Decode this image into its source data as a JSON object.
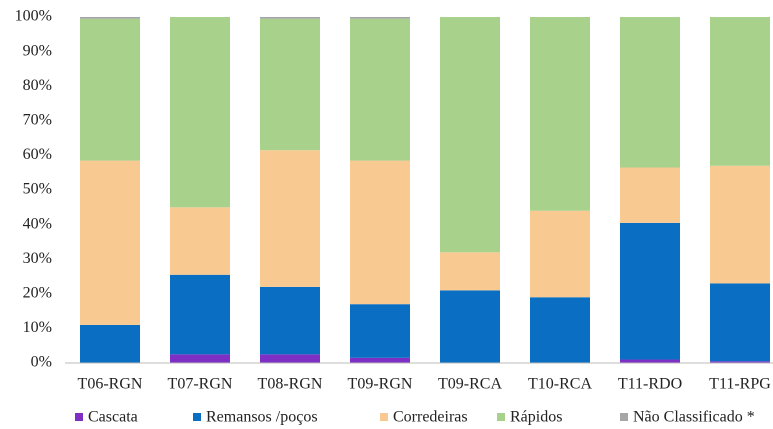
{
  "chart_data": {
    "type": "stacked_bar",
    "categories": [
      "T06-RGN",
      "T07-RGN",
      "T08-RGN",
      "T09-RGN",
      "T09-RCA",
      "T10-RCA",
      "T11-RDO",
      "T11-RPG"
    ],
    "series": [
      {
        "name": "Cascata",
        "color": "#7e2fc4",
        "values": [
          0,
          2.5,
          2.5,
          1.5,
          0,
          0,
          1,
          0.5
        ]
      },
      {
        "name": "Remansos /poços",
        "color": "#0a6fc2",
        "values": [
          11,
          23,
          19.5,
          15.5,
          21,
          19,
          39.5,
          22.5
        ]
      },
      {
        "name": "Corredeiras",
        "color": "#f8ca92",
        "values": [
          47.5,
          19.5,
          39.5,
          41.5,
          11,
          25,
          16,
          34
        ]
      },
      {
        "name": "Rápidos",
        "color": "#a8d18c",
        "values": [
          41,
          55,
          38,
          41,
          68,
          56,
          43.5,
          43
        ]
      },
      {
        "name": "Não Classificado *",
        "color": "#a6a6a6",
        "values": [
          0.5,
          0,
          0.5,
          0.5,
          0,
          0,
          0,
          0
        ]
      }
    ],
    "ylim": [
      0,
      100
    ],
    "yticks": [
      {
        "value": 0,
        "label": "0%"
      },
      {
        "value": 10,
        "label": "10%"
      },
      {
        "value": 20,
        "label": "20%"
      },
      {
        "value": 30,
        "label": "30%"
      },
      {
        "value": 40,
        "label": "40%"
      },
      {
        "value": 50,
        "label": "50%"
      },
      {
        "value": 60,
        "label": "60%"
      },
      {
        "value": 70,
        "label": "70%"
      },
      {
        "value": 80,
        "label": "80%"
      },
      {
        "value": 90,
        "label": "90%"
      },
      {
        "value": 100,
        "label": "100%"
      }
    ],
    "grid": false,
    "legend": "bottom"
  }
}
